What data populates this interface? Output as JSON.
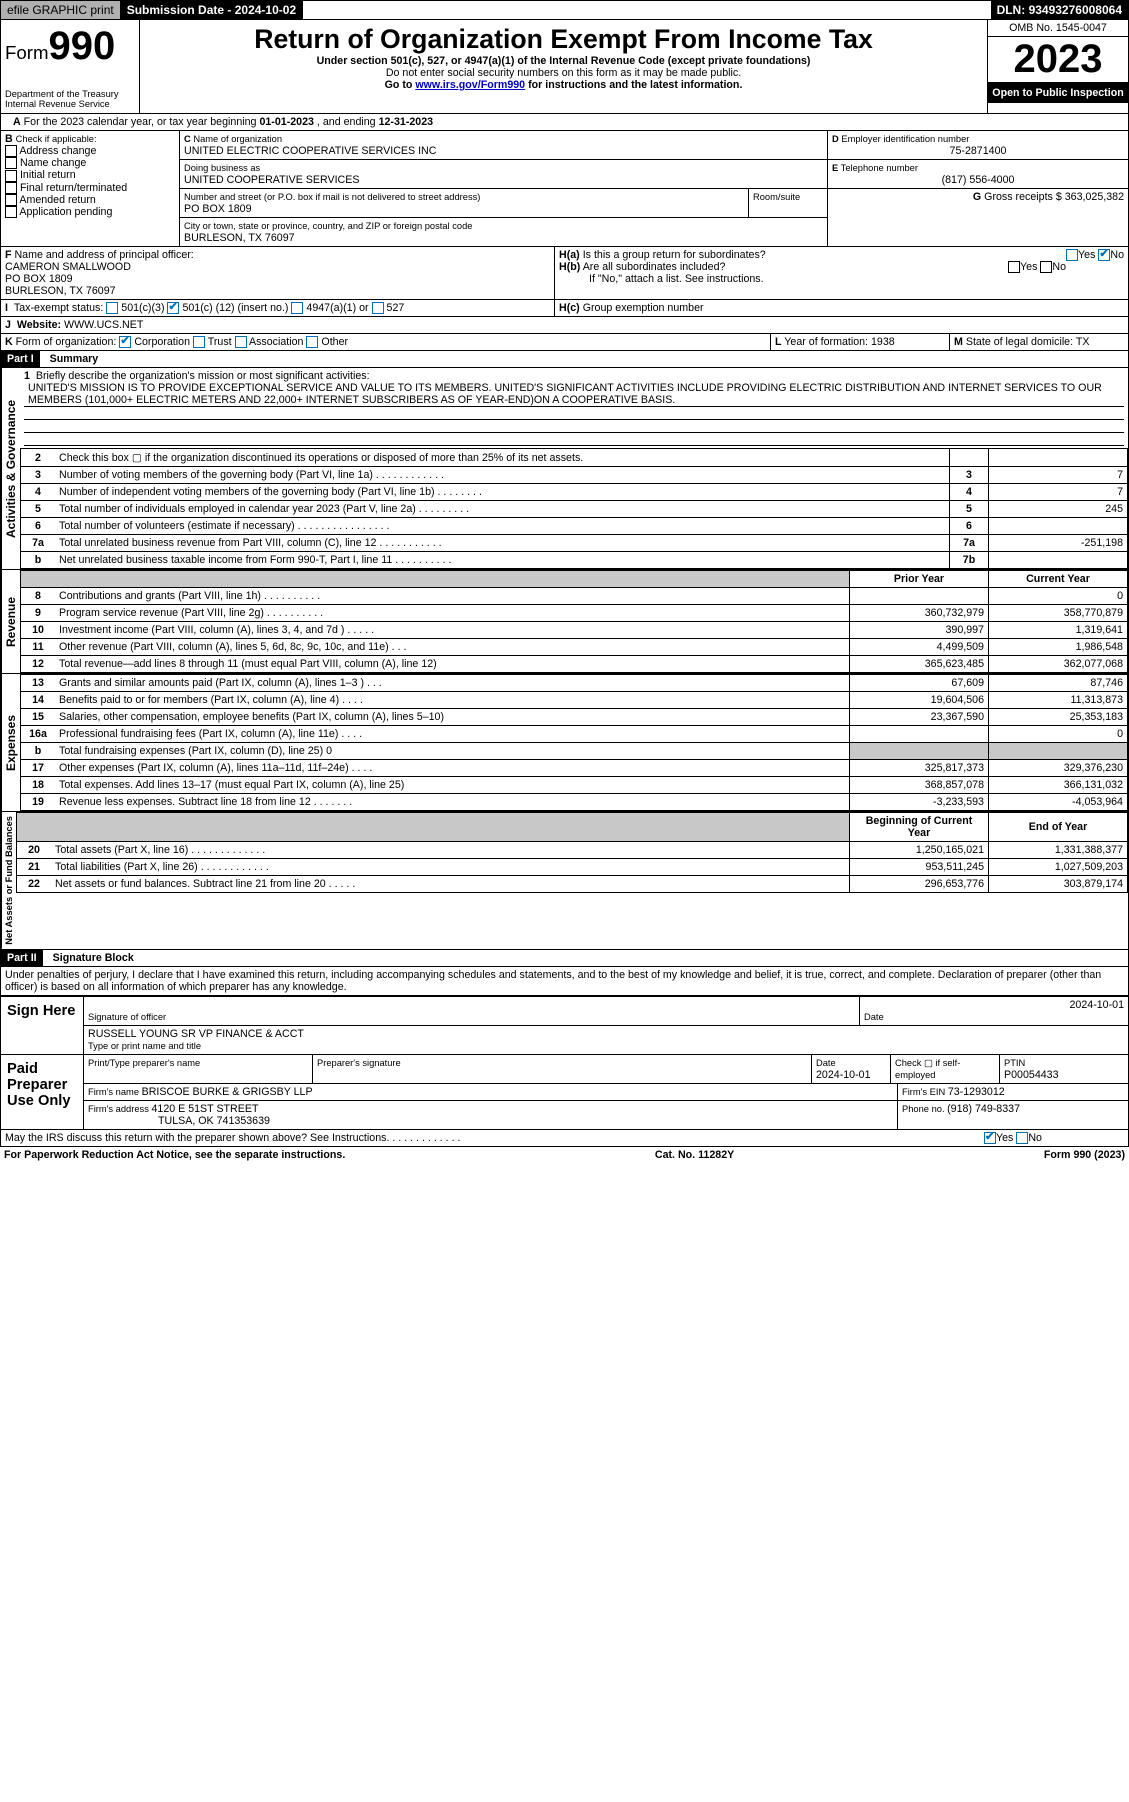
{
  "topbar": {
    "efile": "efile GRAPHIC print",
    "submission_label": "Submission Date - ",
    "submission_date": "2024-10-02",
    "dln_label": "DLN: ",
    "dln": "93493276008064"
  },
  "header": {
    "form_prefix": "Form",
    "form_number": "990",
    "dept": "Department of the Treasury",
    "irs": "Internal Revenue Service",
    "title": "Return of Organization Exempt From Income Tax",
    "subtitle": "Under section 501(c), 527, or 4947(a)(1) of the Internal Revenue Code (except private foundations)",
    "warn": "Do not enter social security numbers on this form as it may be made public.",
    "goto_pre": "Go to ",
    "goto_link": "www.irs.gov/Form990",
    "goto_post": " for instructions and the latest information.",
    "omb": "OMB No. 1545-0047",
    "year": "2023",
    "inspect": "Open to Public Inspection"
  },
  "boxA": {
    "text": "For the 2023 calendar year, or tax year beginning ",
    "begin": "01-01-2023",
    "mid": " , and ending ",
    "end": "12-31-2023"
  },
  "boxB": {
    "label": "Check if applicable:",
    "items": [
      "Address change",
      "Name change",
      "Initial return",
      "Final return/terminated",
      "Amended return",
      "Application pending"
    ]
  },
  "boxC": {
    "name_label": "Name of organization",
    "name": "UNITED ELECTRIC COOPERATIVE SERVICES INC",
    "dba_label": "Doing business as",
    "dba": "UNITED COOPERATIVE SERVICES",
    "street_label": "Number and street (or P.O. box if mail is not delivered to street address)",
    "room_label": "Room/suite",
    "street": "PO BOX 1809",
    "city_label": "City or town, state or province, country, and ZIP or foreign postal code",
    "city": "BURLESON, TX  76097"
  },
  "boxD": {
    "label": "Employer identification number",
    "value": "75-2871400"
  },
  "boxE": {
    "label": "Telephone number",
    "value": "(817) 556-4000"
  },
  "boxG": {
    "label": "Gross receipts $",
    "value": "363,025,382"
  },
  "boxF": {
    "label": "Name and address of principal officer:",
    "name": "CAMERON SMALLWOOD",
    "addr1": "PO BOX 1809",
    "addr2": "BURLESON, TX  76097"
  },
  "boxH": {
    "a": "Is this a group return for subordinates?",
    "b": "Are all subordinates included?",
    "b_note": "If \"No,\" attach a list. See instructions.",
    "c": "Group exemption number  ",
    "yes": "Yes",
    "no": "No"
  },
  "boxI": {
    "label": "Tax-exempt status:",
    "opt1": "501(c)(3)",
    "opt2": "501(c) (",
    "num": "12",
    "opt2b": ") (insert no.)",
    "opt3": "4947(a)(1) or",
    "opt4": "527"
  },
  "boxJ": {
    "label": "Website: ",
    "value": "WWW.UCS.NET"
  },
  "boxK": {
    "label": "Form of organization:",
    "opts": [
      "Corporation",
      "Trust",
      "Association",
      "Other"
    ]
  },
  "boxL": {
    "label": "Year of formation: ",
    "value": "1938"
  },
  "boxM": {
    "label": "State of legal domicile: ",
    "value": "TX"
  },
  "part1": {
    "hdr": "Part I",
    "title": "Summary"
  },
  "mission": {
    "num": "1",
    "label": "Briefly describe the organization's mission or most significant activities:",
    "text": "UNITED'S MISSION IS TO PROVIDE EXCEPTIONAL SERVICE AND VALUE TO ITS MEMBERS. UNITED'S SIGNIFICANT ACTIVITIES INCLUDE PROVIDING ELECTRIC DISTRIBUTION AND INTERNET SERVICES TO OUR MEMBERS (101,000+ ELECTRIC METERS AND 22,000+ INTERNET SUBSCRIBERS AS OF YEAR-END)ON A COOPERATIVE BASIS."
  },
  "gov_lines": [
    {
      "n": "2",
      "d": "Check this box ▢ if the organization discontinued its operations or disposed of more than 25% of its net assets.",
      "box": "",
      "v": ""
    },
    {
      "n": "3",
      "d": "Number of voting members of the governing body (Part VI, line 1a)   .    .    .    .    .    .    .    .    .    .    .    .",
      "box": "3",
      "v": "7"
    },
    {
      "n": "4",
      "d": "Number of independent voting members of the governing body (Part VI, line 1b)   .    .    .    .    .    .    .    .",
      "box": "4",
      "v": "7"
    },
    {
      "n": "5",
      "d": "Total number of individuals employed in calendar year 2023 (Part V, line 2a)   .    .    .    .    .    .    .    .    .",
      "box": "5",
      "v": "245"
    },
    {
      "n": "6",
      "d": "Total number of volunteers (estimate if necessary)   .    .    .    .    .    .    .    .    .    .    .    .    .    .    .    .",
      "box": "6",
      "v": ""
    },
    {
      "n": "7a",
      "d": "Total unrelated business revenue from Part VIII, column (C), line 12   .    .    .    .    .    .    .    .    .    .    .",
      "box": "7a",
      "v": "-251,198"
    },
    {
      "n": "b",
      "d": "Net unrelated business taxable income from Form 990-T, Part I, line 11   .    .    .    .    .    .    .    .    .    .",
      "box": "7b",
      "v": ""
    }
  ],
  "py_cy_hdr": {
    "py": "Prior Year",
    "cy": "Current Year"
  },
  "rev_lines": [
    {
      "n": "8",
      "d": "Contributions and grants (Part VIII, line 1h)   .    .    .    .    .    .    .    .    .    .",
      "py": "",
      "cy": "0"
    },
    {
      "n": "9",
      "d": "Program service revenue (Part VIII, line 2g)   .    .    .    .    .    .    .    .    .    .",
      "py": "360,732,979",
      "cy": "358,770,879"
    },
    {
      "n": "10",
      "d": "Investment income (Part VIII, column (A), lines 3, 4, and 7d )   .    .    .    .    .",
      "py": "390,997",
      "cy": "1,319,641"
    },
    {
      "n": "11",
      "d": "Other revenue (Part VIII, column (A), lines 5, 6d, 8c, 9c, 10c, and 11e)   .    .    .",
      "py": "4,499,509",
      "cy": "1,986,548"
    },
    {
      "n": "12",
      "d": "Total revenue—add lines 8 through 11 (must equal Part VIII, column (A), line 12)",
      "py": "365,623,485",
      "cy": "362,077,068"
    }
  ],
  "exp_lines": [
    {
      "n": "13",
      "d": "Grants and similar amounts paid (Part IX, column (A), lines 1–3 )   .    .    .",
      "py": "67,609",
      "cy": "87,746"
    },
    {
      "n": "14",
      "d": "Benefits paid to or for members (Part IX, column (A), line 4)   .    .    .    .",
      "py": "19,604,506",
      "cy": "11,313,873"
    },
    {
      "n": "15",
      "d": "Salaries, other compensation, employee benefits (Part IX, column (A), lines 5–10)",
      "py": "23,367,590",
      "cy": "25,353,183"
    },
    {
      "n": "16a",
      "d": "Professional fundraising fees (Part IX, column (A), line 11e)   .    .    .    .",
      "py": "",
      "cy": "0"
    },
    {
      "n": "b",
      "d": "Total fundraising expenses (Part IX, column (D), line 25) 0",
      "py": "shade",
      "cy": "shade"
    },
    {
      "n": "17",
      "d": "Other expenses (Part IX, column (A), lines 11a–11d, 11f–24e)   .    .    .    .",
      "py": "325,817,373",
      "cy": "329,376,230"
    },
    {
      "n": "18",
      "d": "Total expenses. Add lines 13–17 (must equal Part IX, column (A), line 25)",
      "py": "368,857,078",
      "cy": "366,131,032"
    },
    {
      "n": "19",
      "d": "Revenue less expenses. Subtract line 18 from line 12   .    .    .    .    .    .    .",
      "py": "-3,233,593",
      "cy": "-4,053,964"
    }
  ],
  "na_hdr": {
    "py": "Beginning of Current Year",
    "cy": "End of Year"
  },
  "na_lines": [
    {
      "n": "20",
      "d": "Total assets (Part X, line 16)   .    .    .    .    .    .    .    .    .    .    .    .    .",
      "py": "1,250,165,021",
      "cy": "1,331,388,377"
    },
    {
      "n": "21",
      "d": "Total liabilities (Part X, line 26)   .    .    .    .    .    .    .    .    .    .    .    .",
      "py": "953,511,245",
      "cy": "1,027,509,203"
    },
    {
      "n": "22",
      "d": "Net assets or fund balances. Subtract line 21 from line 20   .    .    .    .    .",
      "py": "296,653,776",
      "cy": "303,879,174"
    }
  ],
  "sections": {
    "gov": "Activities & Governance",
    "rev": "Revenue",
    "exp": "Expenses",
    "na": "Net Assets or Fund Balances"
  },
  "part2": {
    "hdr": "Part II",
    "title": "Signature Block",
    "perjury": "Under penalties of perjury, I declare that I have examined this return, including accompanying schedules and statements, and to the best of my knowledge and belief, it is true, correct, and complete. Declaration of preparer (other than officer) is based on all information of which preparer has any knowledge."
  },
  "sign": {
    "here": "Sign Here",
    "sig_label": "Signature of officer",
    "date_label": "Date",
    "date": "2024-10-01",
    "officer": "RUSSELL YOUNG SR VP FINANCE & ACCT",
    "type_label": "Type or print name and title"
  },
  "paid": {
    "label": "Paid Preparer Use Only",
    "pt_name": "Print/Type preparer's name",
    "sig": "Preparer's signature",
    "date": "Date",
    "dateval": "2024-10-01",
    "check": "Check ▢ if self-employed",
    "ptin_l": "PTIN",
    "ptin": "P00054433",
    "firm_name_l": "Firm's name  ",
    "firm_name": "BRISCOE BURKE & GRIGSBY LLP",
    "firm_ein_l": "Firm's EIN ",
    "firm_ein": "73-1293012",
    "firm_addr_l": "Firm's address ",
    "firm_addr": "4120 E 51ST STREET",
    "firm_city": "TULSA, OK  741353639",
    "phone_l": "Phone no. ",
    "phone": "(918) 749-8337"
  },
  "discuss": {
    "text": "May the IRS discuss this return with the preparer shown above? See Instructions.   .    .    .    .    .    .    .    .    .    .    .    .",
    "yes": "Yes",
    "no": "No"
  },
  "footer": {
    "left": "For Paperwork Reduction Act Notice, see the separate instructions.",
    "mid": "Cat. No. 11282Y",
    "right": "Form 990 (2023)"
  }
}
